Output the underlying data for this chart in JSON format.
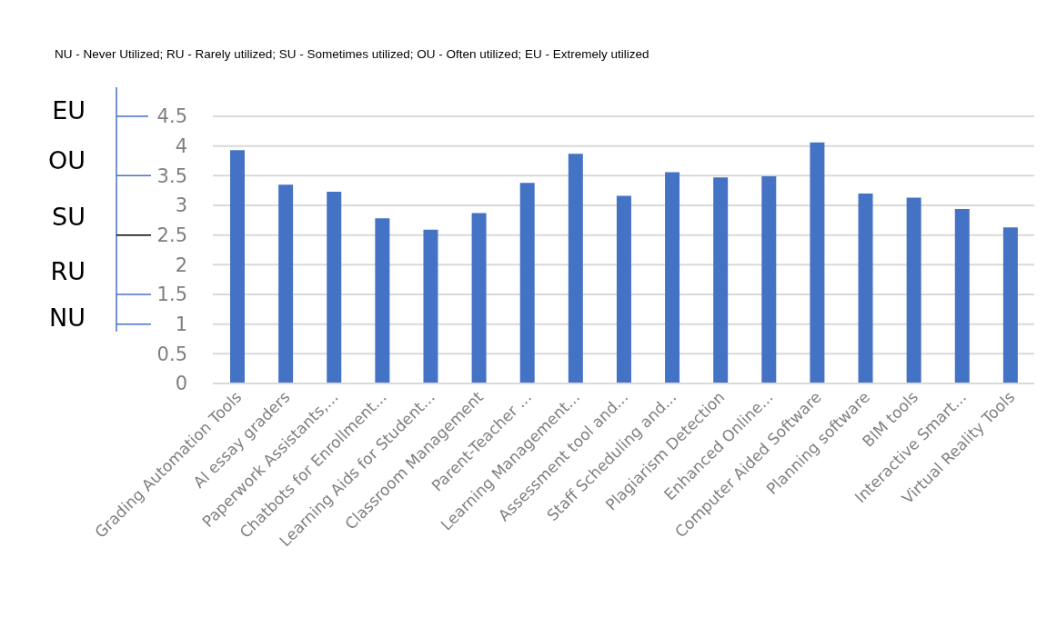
{
  "chart_data": {
    "type": "bar",
    "title": "NU - Never Utilized; RU - Rarely utilized; SU - Sometimes utilized; OU - Often utilized; EU - Extremely utilized",
    "annotations": [
      "EU",
      "OU",
      "SU",
      "RU",
      "NU"
    ],
    "categories": [
      "Grading Automation Tools",
      "AI essay graders",
      "Paperwork Assistants,...",
      "Chatbots for Enrollment...",
      "Learning Aids for Student...",
      "Classroom Management",
      "Parent-Teacher ...",
      "Learning Management...",
      "Assessment tool and...",
      "Staff Scheduling and...",
      "Plagiarism Detection",
      "Enhanced Online...",
      "Computer Aided Software",
      "Planning software",
      "BIM tools",
      "Interactive Smart...",
      "Virtual Reality Tools"
    ],
    "values": [
      3.93,
      3.35,
      3.23,
      2.78,
      2.59,
      2.87,
      3.38,
      3.87,
      3.16,
      3.56,
      3.47,
      3.49,
      4.06,
      3.2,
      3.13,
      2.94,
      2.63
    ],
    "color": "#4472c4",
    "ylim": [
      0,
      4.5
    ],
    "yticks": [
      0,
      0.5,
      1,
      1.5,
      2,
      2.5,
      3,
      3.5,
      4,
      4.5
    ],
    "grid": "y"
  }
}
